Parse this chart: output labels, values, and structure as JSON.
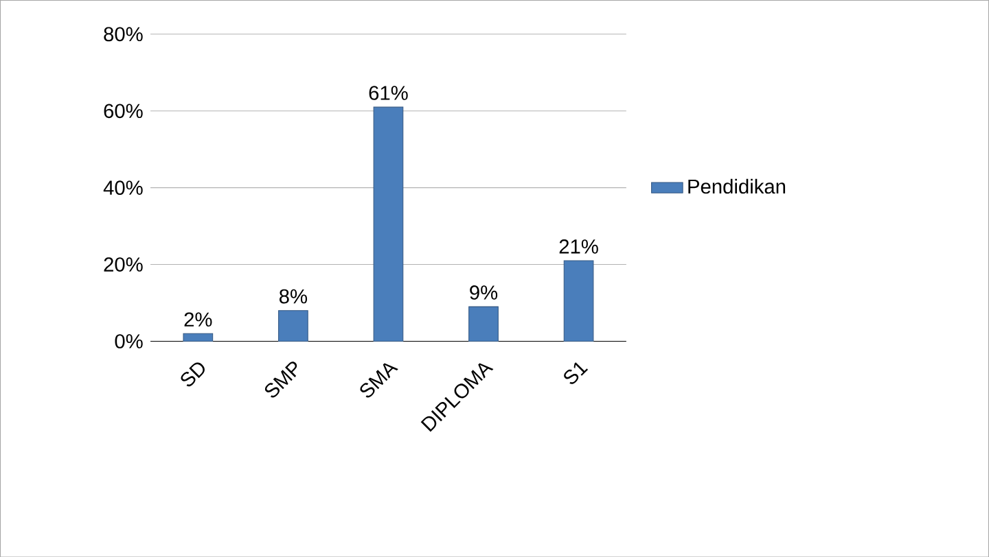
{
  "chart_data": {
    "type": "bar",
    "categories": [
      "SD",
      "SMP",
      "SMA",
      "DIPLOMA",
      "S1"
    ],
    "series": [
      {
        "name": "Pendidikan",
        "color": "#4a7ebb",
        "values": [
          2,
          8,
          61,
          9,
          21
        ],
        "value_labels": [
          "2%",
          "8%",
          "61%",
          "9%",
          "21%"
        ]
      }
    ],
    "ylim": [
      0,
      80
    ],
    "yticks": [
      {
        "value": 0,
        "label": "0%"
      },
      {
        "value": 20,
        "label": "20%"
      },
      {
        "value": 40,
        "label": "40%"
      },
      {
        "value": 60,
        "label": "60%"
      },
      {
        "value": 80,
        "label": "80%"
      }
    ],
    "grid": "y",
    "legend": "right"
  }
}
